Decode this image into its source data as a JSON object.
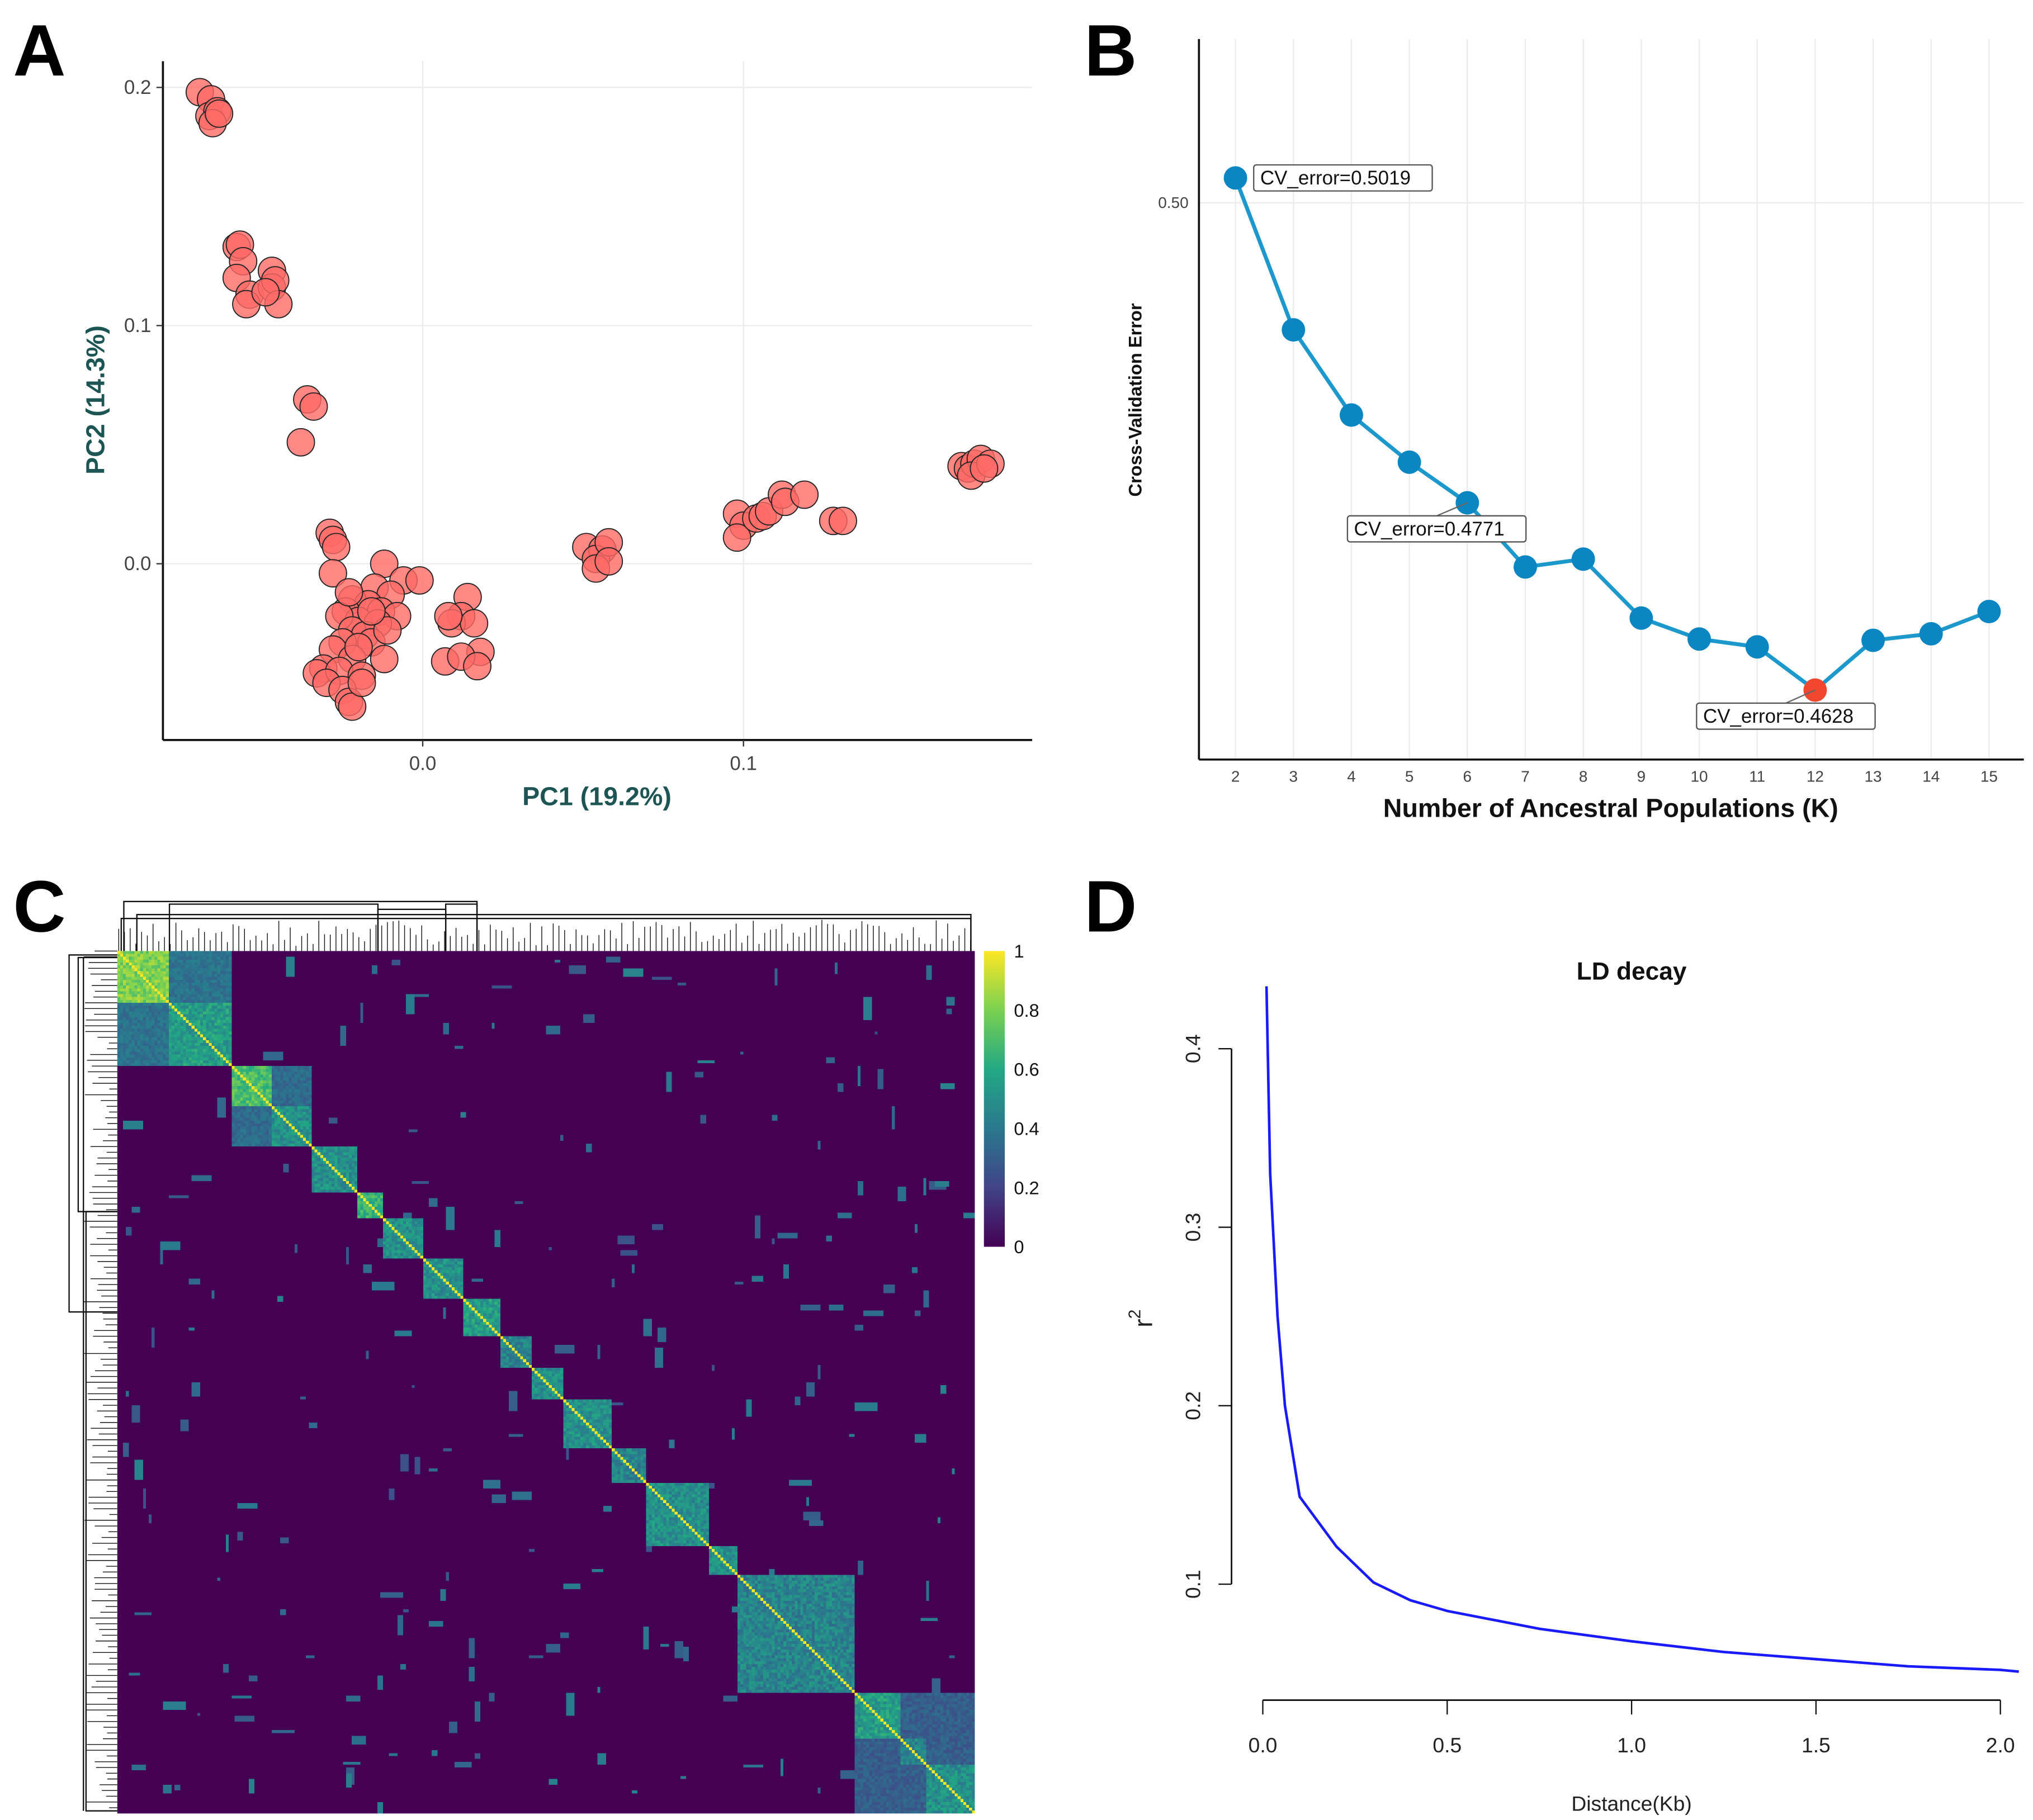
{
  "panel_labels": [
    "A",
    "B",
    "C",
    "D"
  ],
  "colors": {
    "pca_point": "#ff6a66",
    "pca_axis_label": "#1d5555",
    "cv_line": "#1c98cc",
    "cv_point": "#0b86c2",
    "cv_min_point": "#f2472f",
    "ld_line": "#1a1aff"
  },
  "chart_data": [
    {
      "type": "scatter",
      "title": "",
      "xlabel": "PC1 (19.2%)",
      "ylabel": "PC2 (14.3%)",
      "xlim": [
        -0.081,
        0.19
      ],
      "ylim": [
        -0.074,
        0.211
      ],
      "xticks": [
        0.0,
        0.1
      ],
      "xtick_labels": [
        "0.0",
        "0.1"
      ],
      "yticks": [
        0.0,
        0.1,
        0.2
      ],
      "ytick_labels": [
        "0.0",
        "0.1",
        "0.2"
      ],
      "grid": true,
      "points": [
        [
          -0.0695,
          0.198
        ],
        [
          -0.066,
          0.195
        ],
        [
          -0.0665,
          0.188
        ],
        [
          -0.064,
          0.19
        ],
        [
          -0.0655,
          0.185
        ],
        [
          -0.0635,
          0.189
        ],
        [
          -0.058,
          0.133
        ],
        [
          -0.057,
          0.134
        ],
        [
          -0.056,
          0.127
        ],
        [
          -0.058,
          0.12
        ],
        [
          -0.054,
          0.113
        ],
        [
          -0.055,
          0.109
        ],
        [
          -0.047,
          0.123
        ],
        [
          -0.047,
          0.116
        ],
        [
          -0.046,
          0.119
        ],
        [
          -0.045,
          0.109
        ],
        [
          -0.049,
          0.114
        ],
        [
          -0.036,
          0.069
        ],
        [
          -0.034,
          0.066
        ],
        [
          -0.038,
          0.051
        ],
        [
          -0.029,
          0.013
        ],
        [
          -0.028,
          0.01
        ],
        [
          -0.027,
          0.007
        ],
        [
          -0.028,
          -0.004
        ],
        [
          -0.012,
          0.0
        ],
        [
          -0.006,
          -0.007
        ],
        [
          -0.001,
          -0.007
        ],
        [
          -0.015,
          -0.01
        ],
        [
          -0.01,
          -0.013
        ],
        [
          -0.022,
          -0.015
        ],
        [
          -0.017,
          -0.017
        ],
        [
          -0.013,
          -0.02
        ],
        [
          -0.024,
          -0.02
        ],
        [
          -0.02,
          -0.024
        ],
        [
          -0.026,
          -0.022
        ],
        [
          -0.008,
          -0.022
        ],
        [
          -0.014,
          -0.025
        ],
        [
          -0.022,
          -0.028
        ],
        [
          -0.018,
          -0.03
        ],
        [
          -0.025,
          -0.033
        ],
        [
          -0.028,
          -0.036
        ],
        [
          -0.016,
          -0.033
        ],
        [
          -0.022,
          -0.04
        ],
        [
          -0.012,
          -0.04
        ],
        [
          -0.031,
          -0.044
        ],
        [
          -0.033,
          -0.046
        ],
        [
          -0.026,
          -0.045
        ],
        [
          -0.019,
          -0.047
        ],
        [
          -0.03,
          -0.05
        ],
        [
          -0.025,
          -0.053
        ],
        [
          -0.023,
          -0.058
        ],
        [
          -0.022,
          -0.06
        ],
        [
          -0.019,
          -0.05
        ],
        [
          -0.02,
          -0.035
        ],
        [
          -0.011,
          -0.028
        ],
        [
          -0.023,
          -0.012
        ],
        [
          -0.016,
          -0.02
        ],
        [
          0.014,
          -0.014
        ],
        [
          0.012,
          -0.022
        ],
        [
          0.009,
          -0.025
        ],
        [
          0.016,
          -0.025
        ],
        [
          0.018,
          -0.037
        ],
        [
          0.007,
          -0.041
        ],
        [
          0.012,
          -0.039
        ],
        [
          0.017,
          -0.043
        ],
        [
          0.008,
          -0.022
        ],
        [
          0.051,
          0.007
        ],
        [
          0.056,
          0.006
        ],
        [
          0.054,
          0.002
        ],
        [
          0.058,
          0.009
        ],
        [
          0.054,
          -0.002
        ],
        [
          0.058,
          0.001
        ],
        [
          0.098,
          0.021
        ],
        [
          0.1,
          0.016
        ],
        [
          0.098,
          0.011
        ],
        [
          0.104,
          0.019
        ],
        [
          0.106,
          0.02
        ],
        [
          0.108,
          0.022
        ],
        [
          0.112,
          0.029
        ],
        [
          0.113,
          0.026
        ],
        [
          0.119,
          0.029
        ],
        [
          0.128,
          0.018
        ],
        [
          0.131,
          0.018
        ],
        [
          0.168,
          0.041
        ],
        [
          0.17,
          0.04
        ],
        [
          0.172,
          0.042
        ],
        [
          0.174,
          0.044
        ],
        [
          0.171,
          0.037
        ],
        [
          0.177,
          0.042
        ],
        [
          0.175,
          0.04
        ]
      ]
    },
    {
      "type": "line",
      "title": "",
      "xlabel": "Number of Ancestral Populations (K)",
      "ylabel": "Cross-Validation Error",
      "x": [
        2,
        3,
        4,
        5,
        6,
        7,
        8,
        9,
        10,
        11,
        12,
        13,
        14,
        15
      ],
      "values": [
        0.5019,
        0.4903,
        0.4838,
        0.4802,
        0.4771,
        0.4722,
        0.4728,
        0.4683,
        0.4667,
        0.4661,
        0.4628,
        0.4666,
        0.4671,
        0.4688
      ],
      "xlim": [
        1.37,
        15.6
      ],
      "ylim": [
        0.4575,
        0.5125
      ],
      "yticks": [
        0.5
      ],
      "ytick_labels": [
        "0.50"
      ],
      "xtick_labels": [
        "2",
        "3",
        "4",
        "5",
        "6",
        "7",
        "8",
        "9",
        "10",
        "11",
        "12",
        "13",
        "14",
        "15"
      ],
      "highlight_k": 12,
      "annotations": [
        {
          "k": 2,
          "text": "CV_error=0.5019"
        },
        {
          "k": 6,
          "text": "CV_error=0.4771"
        },
        {
          "k": 12,
          "text": "CV_error=0.4628"
        }
      ]
    },
    {
      "type": "heatmap",
      "title": "",
      "n_samples": 300,
      "colorbar_ticks": [
        0,
        0.2,
        0.4,
        0.6,
        0.8,
        1
      ],
      "colorbar_labels": [
        "0",
        "0.2",
        "0.4",
        "0.6",
        "0.8",
        "1"
      ],
      "diagonal_blocks": [
        [
          0,
          18,
          0.8
        ],
        [
          18,
          40,
          0.55
        ],
        [
          40,
          54,
          0.7
        ],
        [
          54,
          68,
          0.5
        ],
        [
          68,
          84,
          0.5
        ],
        [
          84,
          93,
          0.65
        ],
        [
          93,
          107,
          0.5
        ],
        [
          107,
          121,
          0.5
        ],
        [
          121,
          134,
          0.55
        ],
        [
          134,
          145,
          0.45
        ],
        [
          145,
          156,
          0.5
        ],
        [
          156,
          173,
          0.5
        ],
        [
          173,
          185,
          0.45
        ],
        [
          185,
          207,
          0.5
        ],
        [
          207,
          217,
          0.5
        ],
        [
          217,
          258,
          0.45
        ],
        [
          258,
          274,
          0.55
        ],
        [
          274,
          283,
          0.45
        ],
        [
          283,
          300,
          0.5
        ]
      ],
      "group_blocks": [
        [
          0,
          40,
          0.38
        ],
        [
          40,
          68,
          0.35
        ],
        [
          258,
          300,
          0.3
        ]
      ]
    },
    {
      "type": "line",
      "title": "LD decay",
      "xlabel": "Distance(Kb)",
      "ylabel": "r^2",
      "ylabel_main": "r",
      "ylabel_sup": "2",
      "xticks": [
        0.0,
        0.5,
        1.0,
        1.5,
        2.0
      ],
      "xtick_labels": [
        "0.0",
        "0.5",
        "1.0",
        "1.5",
        "2.0"
      ],
      "yticks": [
        0.1,
        0.2,
        0.3,
        0.4
      ],
      "ytick_labels": [
        "0.1",
        "0.2",
        "0.3",
        "0.4"
      ],
      "points": [
        [
          0.01,
          0.435
        ],
        [
          0.02,
          0.33
        ],
        [
          0.04,
          0.25
        ],
        [
          0.06,
          0.2
        ],
        [
          0.1,
          0.149
        ],
        [
          0.2,
          0.121
        ],
        [
          0.3,
          0.101
        ],
        [
          0.4,
          0.091
        ],
        [
          0.5,
          0.085
        ],
        [
          0.75,
          0.075
        ],
        [
          1.0,
          0.068
        ],
        [
          1.25,
          0.062
        ],
        [
          1.5,
          0.058
        ],
        [
          1.75,
          0.054
        ],
        [
          2.0,
          0.052
        ],
        [
          2.05,
          0.051
        ]
      ]
    }
  ]
}
